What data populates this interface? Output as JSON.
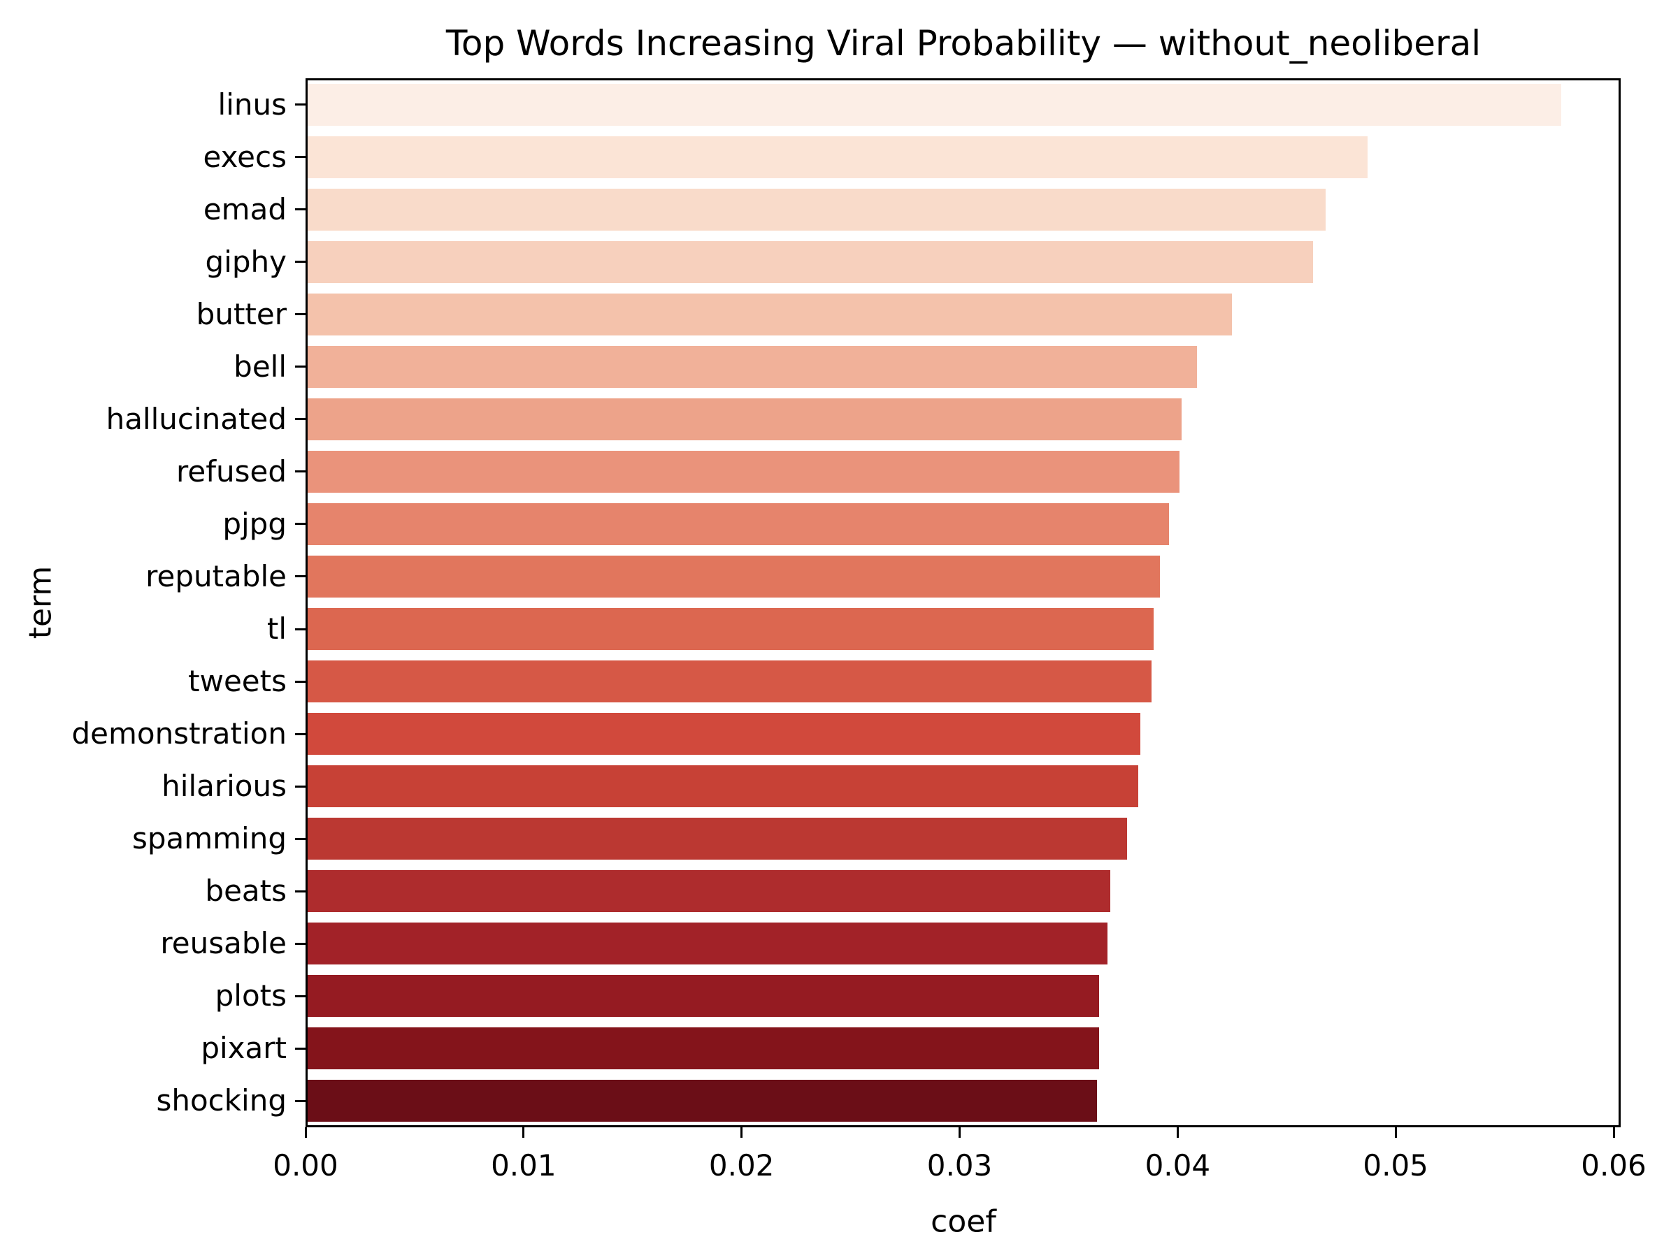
{
  "chart_data": {
    "type": "bar",
    "orientation": "horizontal",
    "title": "Top Words Increasing Viral Probability — without_neoliberal",
    "xlabel": "coef",
    "ylabel": "term",
    "xlim": [
      0,
      0.06
    ],
    "xtick_labels": [
      "0.00",
      "0.01",
      "0.02",
      "0.03",
      "0.04",
      "0.05",
      "0.06"
    ],
    "xtick_values": [
      0,
      0.01,
      0.02,
      0.03,
      0.04,
      0.05,
      0.06
    ],
    "grid": false,
    "legend": false,
    "palette": "Reds",
    "categories": [
      "linus",
      "execs",
      "emad",
      "giphy",
      "butter",
      "bell",
      "hallucinated",
      "refused",
      "pjpg",
      "reputable",
      "tl",
      "tweets",
      "demonstration",
      "hilarious",
      "spamming",
      "beats",
      "reusable",
      "plots",
      "pixart",
      "shocking"
    ],
    "values": [
      0.0575,
      0.0486,
      0.0467,
      0.0461,
      0.0424,
      0.0408,
      0.0401,
      0.04,
      0.0395,
      0.0391,
      0.0388,
      0.0387,
      0.0382,
      0.0381,
      0.0376,
      0.0368,
      0.0367,
      0.0363,
      0.0363,
      0.0362
    ],
    "bar_colors": [
      "#fceee6",
      "#fbe4d6",
      "#f9dbca",
      "#f7d0bd",
      "#f4c2ab",
      "#f1b199",
      "#eda38a",
      "#ea937b",
      "#e6846c",
      "#e1765d",
      "#dc6750",
      "#d65846",
      "#d1493c",
      "#c74136",
      "#bb3832",
      "#ae2c2d",
      "#a22228",
      "#951b22",
      "#84141b",
      "#6b0e17"
    ]
  }
}
